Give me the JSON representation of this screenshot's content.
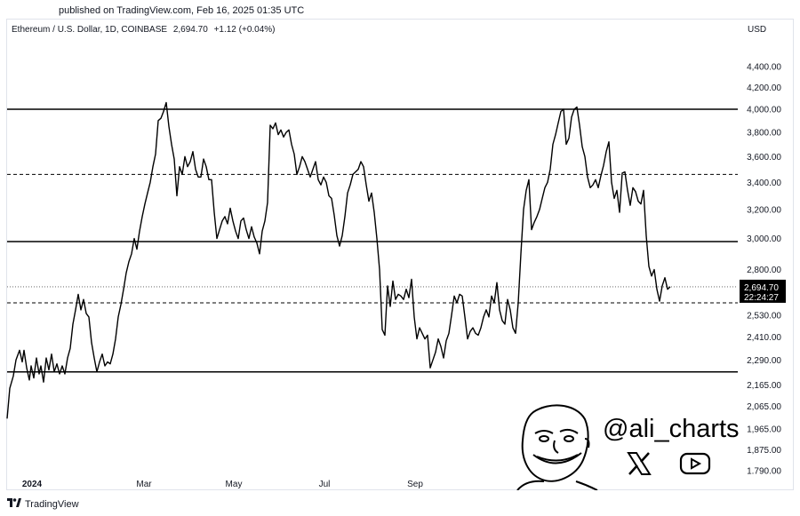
{
  "published": "published on TradingView.com, Feb 16, 2025 01:35 UTC",
  "legend": {
    "symbol": "Ethereum / U.S. Dollar, 1D, COINBASE",
    "price": "2,694.70",
    "change": "+1.12 (+0.04%)"
  },
  "currency": "USD",
  "price_label": {
    "price": "2,694.70",
    "countdown": "22:24:27"
  },
  "footer": {
    "logo": "TradingView"
  },
  "watermark": {
    "handle": "@ali_charts",
    "icons": [
      "x-logo-icon",
      "youtube-icon"
    ]
  },
  "colors": {
    "line": "#000000",
    "background": "#ffffff",
    "price_label_bg": "#000000"
  },
  "chart_data": {
    "type": "line",
    "x_tick_labels": [
      "2024",
      "Mar",
      "May",
      "Jul",
      "Sep"
    ],
    "y_tick_values": [
      4400,
      4200,
      4000,
      3800,
      3600,
      3400,
      3200,
      3000,
      2800,
      2530,
      2410,
      2290,
      2165,
      2065,
      1965,
      1875,
      1790
    ],
    "y_tick_labels": [
      "4,400.00",
      "4,200.00",
      "4,000.00",
      "3,800.00",
      "3,600.00",
      "3,400.00",
      "3,200.00",
      "3,000.00",
      "2,800.00",
      "2,530.00",
      "2,410.00",
      "2,290.00",
      "2,165.00",
      "2,065.00",
      "1,965.00",
      "1,875.00",
      "1.790.00"
    ],
    "y_scale": "log",
    "ylim": [
      1760,
      4550
    ],
    "horizontal_levels": [
      {
        "value": 4000,
        "style": "solid"
      },
      {
        "value": 3460,
        "style": "dashed"
      },
      {
        "value": 2980,
        "style": "solid"
      },
      {
        "value": 2600,
        "style": "dashed"
      },
      {
        "value": 2230,
        "style": "solid"
      }
    ],
    "current_price": 2694.7,
    "series": [
      {
        "values": [
          [
            0,
            2010
          ],
          [
            3,
            2150
          ],
          [
            7,
            2210
          ],
          [
            10,
            2290
          ],
          [
            14,
            2340
          ],
          [
            17,
            2280
          ],
          [
            19,
            2340
          ],
          [
            22,
            2250
          ],
          [
            25,
            2190
          ],
          [
            27,
            2260
          ],
          [
            30,
            2200
          ],
          [
            33,
            2300
          ],
          [
            36,
            2220
          ],
          [
            38,
            2260
          ],
          [
            41,
            2180
          ],
          [
            44,
            2300
          ],
          [
            47,
            2240
          ],
          [
            50,
            2320
          ],
          [
            53,
            2230
          ],
          [
            56,
            2270
          ],
          [
            59,
            2220
          ],
          [
            62,
            2260
          ],
          [
            65,
            2220
          ],
          [
            68,
            2300
          ],
          [
            71,
            2350
          ],
          [
            74,
            2480
          ],
          [
            77,
            2560
          ],
          [
            80,
            2650
          ],
          [
            83,
            2560
          ],
          [
            86,
            2620
          ],
          [
            89,
            2540
          ],
          [
            92,
            2520
          ],
          [
            95,
            2380
          ],
          [
            98,
            2300
          ],
          [
            101,
            2230
          ],
          [
            104,
            2280
          ],
          [
            107,
            2320
          ],
          [
            110,
            2260
          ],
          [
            113,
            2280
          ],
          [
            116,
            2270
          ],
          [
            119,
            2320
          ],
          [
            122,
            2400
          ],
          [
            125,
            2520
          ],
          [
            128,
            2590
          ],
          [
            131,
            2680
          ],
          [
            134,
            2780
          ],
          [
            137,
            2850
          ],
          [
            140,
            2900
          ],
          [
            143,
            3000
          ],
          [
            146,
            2930
          ],
          [
            149,
            3050
          ],
          [
            152,
            3150
          ],
          [
            155,
            3240
          ],
          [
            158,
            3320
          ],
          [
            161,
            3400
          ],
          [
            164,
            3520
          ],
          [
            167,
            3620
          ],
          [
            170,
            3900
          ],
          [
            173,
            3920
          ],
          [
            176,
            3980
          ],
          [
            179,
            4060
          ],
          [
            182,
            3850
          ],
          [
            185,
            3700
          ],
          [
            188,
            3580
          ],
          [
            191,
            3300
          ],
          [
            194,
            3520
          ],
          [
            197,
            3460
          ],
          [
            200,
            3600
          ],
          [
            203,
            3520
          ],
          [
            206,
            3560
          ],
          [
            209,
            3640
          ],
          [
            212,
            3500
          ],
          [
            215,
            3440
          ],
          [
            218,
            3440
          ],
          [
            221,
            3580
          ],
          [
            224,
            3520
          ],
          [
            227,
            3420
          ],
          [
            230,
            3420
          ],
          [
            233,
            3180
          ],
          [
            236,
            3000
          ],
          [
            239,
            3060
          ],
          [
            242,
            3120
          ],
          [
            245,
            3150
          ],
          [
            248,
            3100
          ],
          [
            251,
            3210
          ],
          [
            254,
            3120
          ],
          [
            257,
            3050
          ],
          [
            260,
            3000
          ],
          [
            263,
            3120
          ],
          [
            266,
            3140
          ],
          [
            269,
            3060
          ],
          [
            272,
            3000
          ],
          [
            275,
            3080
          ],
          [
            278,
            3010
          ],
          [
            281,
            2970
          ],
          [
            284,
            2900
          ],
          [
            287,
            3050
          ],
          [
            290,
            3120
          ],
          [
            293,
            3250
          ],
          [
            296,
            3860
          ],
          [
            299,
            3830
          ],
          [
            302,
            3880
          ],
          [
            305,
            3780
          ],
          [
            308,
            3820
          ],
          [
            311,
            3760
          ],
          [
            314,
            3800
          ],
          [
            317,
            3820
          ],
          [
            320,
            3700
          ],
          [
            323,
            3620
          ],
          [
            326,
            3460
          ],
          [
            329,
            3520
          ],
          [
            332,
            3600
          ],
          [
            335,
            3560
          ],
          [
            338,
            3500
          ],
          [
            341,
            3440
          ],
          [
            344,
            3500
          ],
          [
            347,
            3560
          ],
          [
            350,
            3420
          ],
          [
            353,
            3380
          ],
          [
            356,
            3440
          ],
          [
            359,
            3400
          ],
          [
            362,
            3300
          ],
          [
            365,
            3280
          ],
          [
            368,
            3160
          ],
          [
            371,
            3020
          ],
          [
            374,
            2950
          ],
          [
            377,
            3020
          ],
          [
            380,
            3150
          ],
          [
            383,
            3320
          ],
          [
            386,
            3380
          ],
          [
            389,
            3460
          ],
          [
            392,
            3480
          ],
          [
            395,
            3500
          ],
          [
            398,
            3560
          ],
          [
            401,
            3520
          ],
          [
            404,
            3380
          ],
          [
            407,
            3260
          ],
          [
            410,
            3320
          ],
          [
            413,
            3180
          ],
          [
            416,
            3000
          ],
          [
            419,
            2800
          ],
          [
            422,
            2450
          ],
          [
            425,
            2420
          ],
          [
            428,
            2700
          ],
          [
            431,
            2580
          ],
          [
            434,
            2730
          ],
          [
            437,
            2620
          ],
          [
            440,
            2650
          ],
          [
            443,
            2640
          ],
          [
            446,
            2620
          ],
          [
            449,
            2680
          ],
          [
            452,
            2630
          ],
          [
            455,
            2740
          ],
          [
            458,
            2520
          ],
          [
            461,
            2400
          ],
          [
            464,
            2460
          ],
          [
            467,
            2430
          ],
          [
            470,
            2400
          ],
          [
            473,
            2420
          ],
          [
            476,
            2250
          ],
          [
            479,
            2290
          ],
          [
            482,
            2330
          ],
          [
            485,
            2400
          ],
          [
            488,
            2360
          ],
          [
            491,
            2300
          ],
          [
            494,
            2390
          ],
          [
            497,
            2430
          ],
          [
            500,
            2530
          ],
          [
            503,
            2640
          ],
          [
            506,
            2600
          ],
          [
            509,
            2650
          ],
          [
            512,
            2640
          ],
          [
            515,
            2520
          ],
          [
            518,
            2400
          ],
          [
            521,
            2440
          ],
          [
            524,
            2460
          ],
          [
            527,
            2430
          ],
          [
            530,
            2420
          ],
          [
            533,
            2460
          ],
          [
            536,
            2520
          ],
          [
            539,
            2560
          ],
          [
            542,
            2520
          ],
          [
            545,
            2640
          ],
          [
            548,
            2600
          ],
          [
            551,
            2720
          ],
          [
            554,
            2560
          ],
          [
            557,
            2500
          ],
          [
            560,
            2480
          ],
          [
            563,
            2620
          ],
          [
            566,
            2560
          ],
          [
            569,
            2460
          ],
          [
            572,
            2430
          ],
          [
            575,
            2600
          ],
          [
            578,
            2900
          ],
          [
            581,
            3200
          ],
          [
            584,
            3340
          ],
          [
            587,
            3420
          ],
          [
            590,
            3060
          ],
          [
            593,
            3110
          ],
          [
            596,
            3150
          ],
          [
            599,
            3200
          ],
          [
            602,
            3280
          ],
          [
            605,
            3360
          ],
          [
            608,
            3400
          ],
          [
            611,
            3500
          ],
          [
            614,
            3700
          ],
          [
            617,
            3780
          ],
          [
            620,
            3880
          ],
          [
            623,
            3980
          ],
          [
            626,
            4000
          ],
          [
            629,
            3700
          ],
          [
            632,
            3750
          ],
          [
            635,
            3930
          ],
          [
            638,
            4000
          ],
          [
            641,
            4020
          ],
          [
            644,
            3860
          ],
          [
            647,
            3680
          ],
          [
            650,
            3600
          ],
          [
            653,
            3440
          ],
          [
            656,
            3360
          ],
          [
            659,
            3380
          ],
          [
            662,
            3420
          ],
          [
            665,
            3360
          ],
          [
            668,
            3450
          ],
          [
            671,
            3530
          ],
          [
            674,
            3640
          ],
          [
            677,
            3720
          ],
          [
            680,
            3400
          ],
          [
            683,
            3280
          ],
          [
            686,
            3340
          ],
          [
            689,
            3180
          ],
          [
            692,
            3470
          ],
          [
            695,
            3480
          ],
          [
            698,
            3340
          ],
          [
            701,
            3230
          ],
          [
            704,
            3360
          ],
          [
            707,
            3330
          ],
          [
            710,
            3260
          ],
          [
            713,
            3240
          ],
          [
            716,
            3340
          ],
          [
            719,
            3020
          ],
          [
            722,
            2820
          ],
          [
            725,
            2760
          ],
          [
            728,
            2800
          ],
          [
            731,
            2680
          ],
          [
            734,
            2610
          ],
          [
            737,
            2700
          ],
          [
            740,
            2750
          ],
          [
            743,
            2680
          ],
          [
            746,
            2695
          ]
        ]
      }
    ]
  }
}
